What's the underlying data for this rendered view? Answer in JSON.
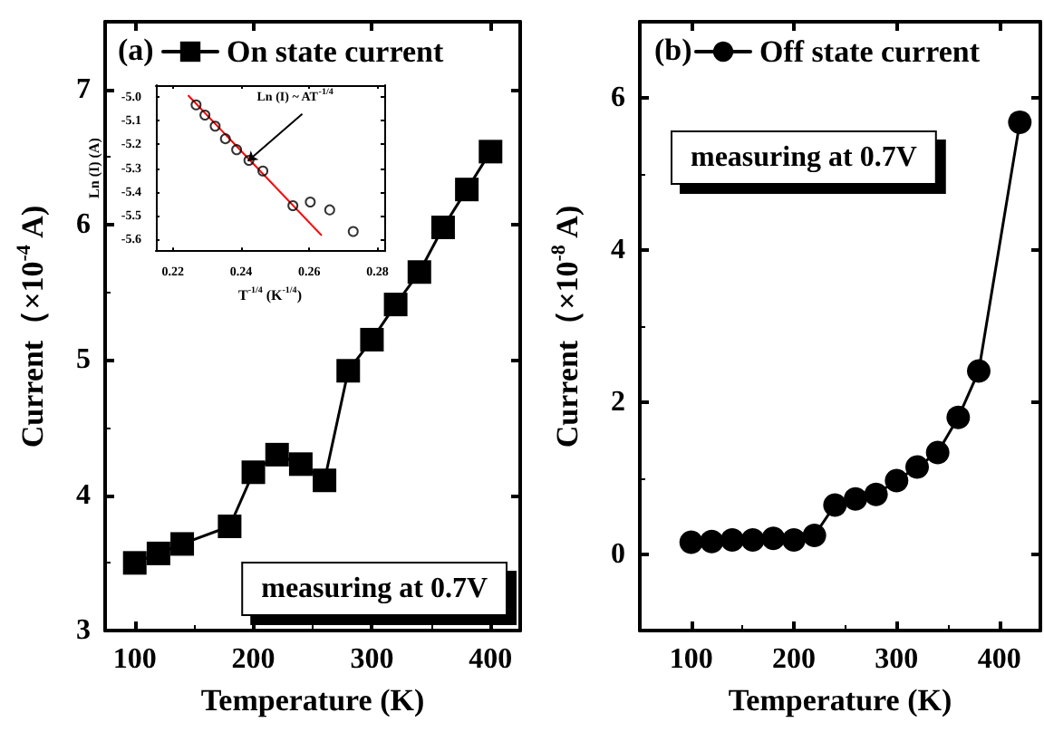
{
  "chart_data": [
    {
      "type": "line",
      "title": "(a)",
      "xlabel": "Temperature (K)",
      "ylabel": "Current（×10$^{-4}$ A)",
      "xlim": [
        75,
        425
      ],
      "xticks": [
        100,
        200,
        300,
        400
      ],
      "ylim": [
        3,
        7.5
      ],
      "yticks": [
        3,
        4,
        5,
        6,
        7
      ],
      "marker": "square",
      "legend": "top left",
      "grid": false,
      "annotations": [
        "measuring at 0.7V"
      ],
      "series": [
        {
          "name": "On state current",
          "color": "#000000",
          "x": [
            100,
            120,
            140,
            180,
            200,
            220,
            240,
            260,
            280,
            300,
            320,
            340,
            360,
            380,
            400
          ],
          "values": [
            3.5,
            3.57,
            3.64,
            3.77,
            4.17,
            4.3,
            4.23,
            4.11,
            4.92,
            5.15,
            5.41,
            5.65,
            5.98,
            6.26,
            6.54
          ]
        }
      ]
    },
    {
      "type": "line",
      "title": "(b)",
      "xlabel": "Temperature (K)",
      "ylabel": "Current（×10$^{-8}$ A)",
      "xlim": [
        50,
        440
      ],
      "xticks": [
        100,
        200,
        300,
        400
      ],
      "ylim": [
        -1,
        7
      ],
      "yticks": [
        0,
        2,
        4,
        6
      ],
      "marker": "circle",
      "legend": "top left",
      "grid": false,
      "annotations": [
        "measuring at 0.7V"
      ],
      "series": [
        {
          "name": "Off state current",
          "color": "#000000",
          "x": [
            100,
            120,
            140,
            160,
            180,
            200,
            220,
            240,
            260,
            280,
            300,
            320,
            340,
            360,
            380,
            420
          ],
          "values": [
            0.16,
            0.17,
            0.19,
            0.19,
            0.21,
            0.19,
            0.25,
            0.65,
            0.73,
            0.79,
            0.97,
            1.15,
            1.34,
            1.8,
            2.41,
            5.68
          ]
        }
      ]
    },
    {
      "type": "scatter",
      "xlabel": "T$^{-1/4}$ (K$^{-1/4}$)",
      "ylabel": "Ln (I) (A)",
      "xlim": [
        0.215,
        0.282
      ],
      "xticks": [
        0.22,
        0.24,
        0.26,
        0.28
      ],
      "ylim": [
        -5.65,
        -4.95
      ],
      "yticks": [
        {
          "value": -5.0,
          "label": "-5.0"
        },
        -5.1,
        -5.2,
        -5.3,
        -5.4,
        -5.5,
        -5.6
      ],
      "marker": "circle",
      "legend": false,
      "grid": false,
      "annotations": [
        {
          "text": "Ln (I) ~ AT$^{-1/4}$",
          "x": 0.242,
          "y": -5.27
        }
      ],
      "series": [
        {
          "color": "#000000",
          "x": [
            0.2268,
            0.2294,
            0.2324,
            0.2354,
            0.2387,
            0.2423,
            0.2464,
            0.2552,
            0.2603,
            0.266,
            0.2729
          ],
          "values": [
            -5.033,
            -5.076,
            -5.123,
            -5.176,
            -5.222,
            -5.267,
            -5.312,
            -5.458,
            -5.443,
            -5.476,
            -5.567
          ]
        },
        {
          "type": "line",
          "color": "#ff0000",
          "marker": "none",
          "x": [
            0.2246,
            0.2635
          ],
          "values": [
            -4.995,
            -5.582
          ]
        }
      ]
    }
  ]
}
